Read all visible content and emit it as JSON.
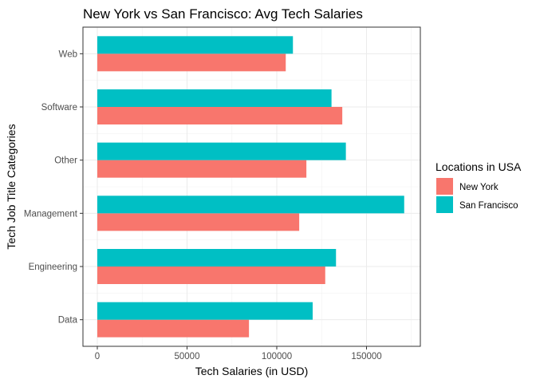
{
  "chart_data": {
    "type": "bar",
    "orientation": "horizontal",
    "title": "New York vs San Francisco: Avg Tech Salaries",
    "xlabel": "Tech Salaries (in USD)",
    "ylabel": "Tech Job Title Categories",
    "categories": [
      "Data",
      "Engineering",
      "Management",
      "Other",
      "Software",
      "Web"
    ],
    "series": [
      {
        "name": "New York",
        "color": "#F8766D",
        "values": [
          84500,
          127000,
          112500,
          116500,
          136500,
          105000
        ]
      },
      {
        "name": "San Francisco",
        "color": "#00BFC4",
        "values": [
          120000,
          133000,
          171000,
          138500,
          130500,
          109000
        ]
      }
    ],
    "xlim": [
      -8000,
      180000
    ],
    "xticks": [
      0,
      50000,
      100000,
      150000
    ],
    "xtick_labels": [
      "0",
      "50000",
      "100000",
      "150000"
    ],
    "grid": true,
    "legend": {
      "title": "Locations in USA",
      "position": "right"
    }
  }
}
